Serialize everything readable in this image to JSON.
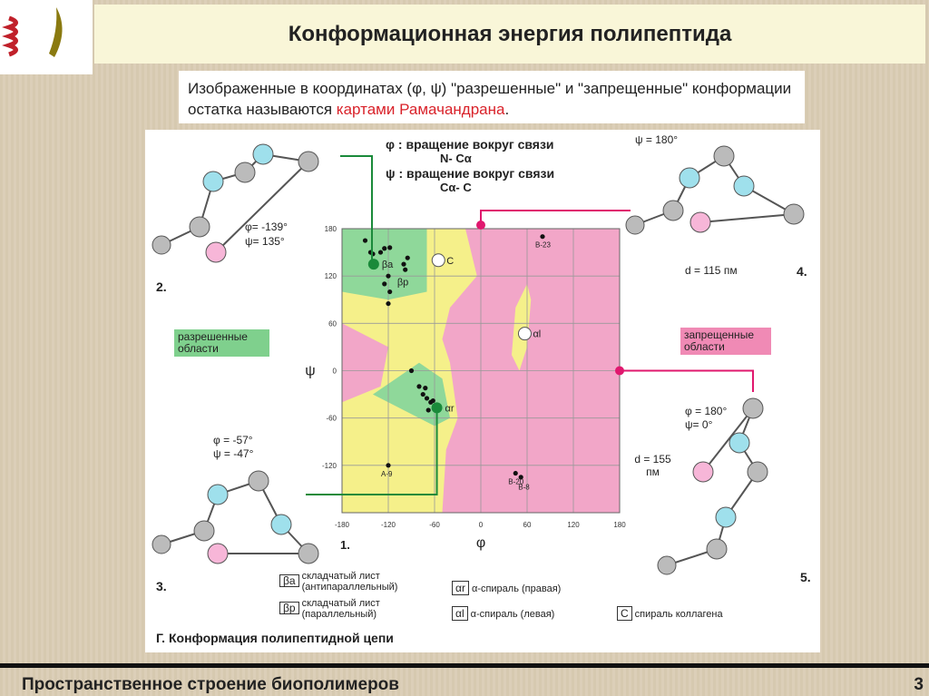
{
  "slide": {
    "title": "Конформационная энергия полипептида",
    "intro_part1": "Изображенные в координатах (φ, ψ) \"разрешенные\" и \"запрещенные\" конформации остатка называются ",
    "intro_highlight": "картами Рамачандрана",
    "intro_end": ".",
    "footer": "Пространственное строение биополимеров",
    "page_number": "3"
  },
  "figure": {
    "phi_def": "φ : вращение вокруг связи",
    "phi_bond": "N- Cα",
    "psi_def": "ψ : вращение вокруг связи",
    "psi_bond": "Cα- C",
    "allowed_label": "разрешенные области",
    "forbidden_label": "запрещенные области",
    "caption": "Г. Конформация полипептидной цепи",
    "panel_numbers": [
      "1.",
      "2.",
      "3.",
      "4.",
      "5."
    ],
    "mol2": {
      "phi": "φ= -139°",
      "psi": "ψ=  135°"
    },
    "mol3": {
      "phi": "φ = -57°",
      "psi": "ψ = -47°"
    },
    "mol4": {
      "psi": "ψ = 180°",
      "d": "d = 115 пм"
    },
    "mol5": {
      "phi": "φ = 180°",
      "psi": "ψ=   0°",
      "d": "d = 155 пм"
    },
    "legend": [
      {
        "symbol": "βa",
        "text": "складчатый лист (антипараллельный)"
      },
      {
        "symbol": "βp",
        "text": "складчатый лист (параллельный)"
      },
      {
        "symbol": "αr",
        "text": "α-спираль (правая)"
      },
      {
        "symbol": "αl",
        "text": "α-спираль (левая)"
      },
      {
        "symbol": "C",
        "text": "спираль коллагена"
      }
    ],
    "colors": {
      "allowed": "#8fd89a",
      "partial": "#f5f08a",
      "forbidden": "#f2a6c8",
      "marker_green": "#1a8a3a",
      "marker_pink": "#e0186e"
    }
  },
  "chart_data": {
    "type": "scatter",
    "xlabel": "φ",
    "ylabel": "ψ",
    "xlim": [
      -180,
      180
    ],
    "ylim": [
      -180,
      180
    ],
    "x_ticks": [
      "-180",
      "-120",
      "-60",
      "0",
      "60",
      "120",
      "180"
    ],
    "y_ticks": [
      "180",
      "120",
      "60",
      "0",
      "-60",
      "-120"
    ],
    "grid": true,
    "points": [
      [
        -150,
        165
      ],
      [
        -143,
        150
      ],
      [
        -140,
        148
      ],
      [
        -130,
        150
      ],
      [
        -125,
        155
      ],
      [
        -118,
        156
      ],
      [
        -100,
        135
      ],
      [
        -95,
        143
      ],
      [
        -98,
        128
      ],
      [
        -120,
        120
      ],
      [
        -125,
        110
      ],
      [
        -118,
        100
      ],
      [
        -120,
        85
      ],
      [
        -80,
        -20
      ],
      [
        -75,
        -30
      ],
      [
        -70,
        -35
      ],
      [
        -65,
        -40
      ],
      [
        -60,
        -45
      ],
      [
        -62,
        -38
      ],
      [
        -68,
        -50
      ],
      [
        -55,
        -48
      ],
      [
        -90,
        0
      ],
      [
        -72,
        -22
      ],
      [
        -120,
        -120
      ],
      [
        80,
        170
      ],
      [
        45,
        -130
      ],
      [
        52,
        -135
      ]
    ],
    "annotations": [
      {
        "label": "βa",
        "x": -139,
        "y": 135
      },
      {
        "label": "βp",
        "x": -119,
        "y": 113
      },
      {
        "label": "C",
        "x": -55,
        "y": 140
      },
      {
        "label": "αl",
        "x": 57,
        "y": 47
      },
      {
        "label": "αr",
        "x": -57,
        "y": -47
      },
      {
        "label": "B-23",
        "x": 80,
        "y": 170
      },
      {
        "label": "A-9",
        "x": -120,
        "y": -120
      },
      {
        "label": "B-20",
        "x": 45,
        "y": -130
      },
      {
        "label": "B-8",
        "x": 58,
        "y": -137
      }
    ]
  }
}
